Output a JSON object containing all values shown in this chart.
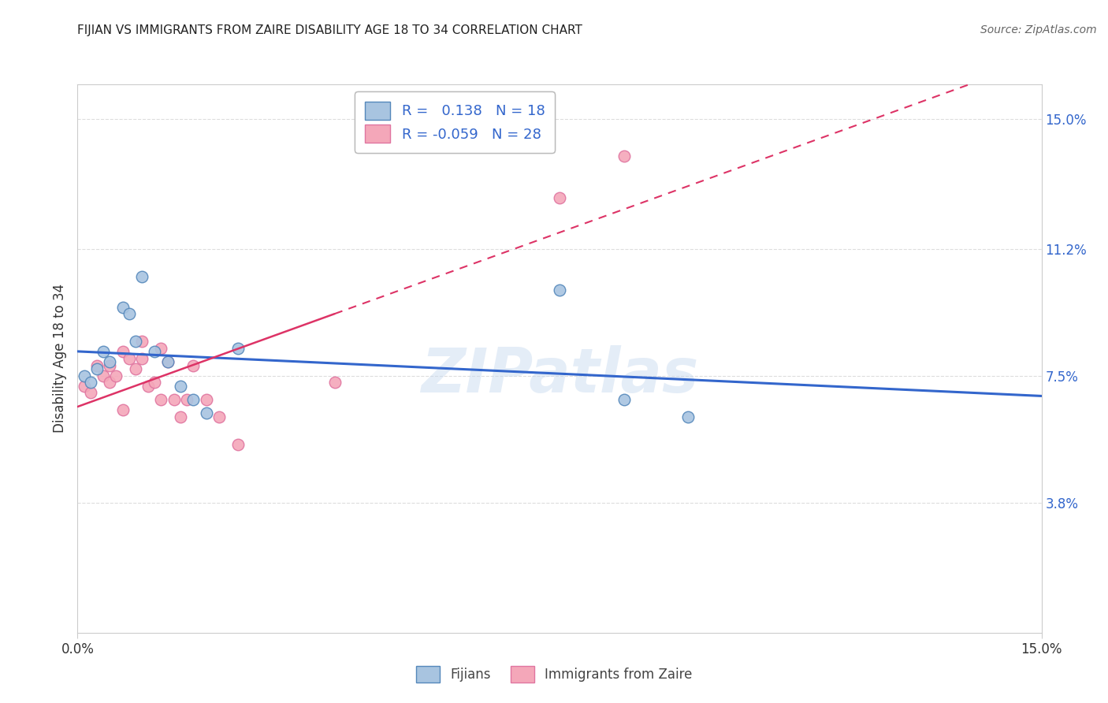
{
  "title": "FIJIAN VS IMMIGRANTS FROM ZAIRE DISABILITY AGE 18 TO 34 CORRELATION CHART",
  "source": "Source: ZipAtlas.com",
  "ylabel": "Disability Age 18 to 34",
  "xlim": [
    0.0,
    0.15
  ],
  "ylim": [
    0.0,
    0.16
  ],
  "ytick_labels": [
    "3.8%",
    "7.5%",
    "11.2%",
    "15.0%"
  ],
  "ytick_values": [
    0.038,
    0.075,
    0.112,
    0.15
  ],
  "fijian_color": "#a8c4e0",
  "zaire_color": "#f4a7b9",
  "fijian_edge": "#5588bb",
  "zaire_edge": "#e075a0",
  "fijian_line_color": "#3366cc",
  "zaire_line_color": "#dd3366",
  "bottom_legend_fijian": "Fijians",
  "bottom_legend_zaire": "Immigrants from Zaire",
  "fijian_R": 0.138,
  "fijian_N": 18,
  "zaire_R": -0.059,
  "zaire_N": 28,
  "fijian_x": [
    0.001,
    0.002,
    0.003,
    0.004,
    0.005,
    0.007,
    0.008,
    0.009,
    0.01,
    0.012,
    0.014,
    0.016,
    0.018,
    0.02,
    0.025,
    0.075,
    0.085,
    0.095
  ],
  "fijian_y": [
    0.075,
    0.073,
    0.077,
    0.082,
    0.079,
    0.095,
    0.093,
    0.085,
    0.104,
    0.082,
    0.079,
    0.072,
    0.068,
    0.064,
    0.083,
    0.1,
    0.068,
    0.063
  ],
  "zaire_x": [
    0.001,
    0.002,
    0.003,
    0.004,
    0.005,
    0.005,
    0.006,
    0.007,
    0.007,
    0.008,
    0.009,
    0.01,
    0.01,
    0.011,
    0.012,
    0.013,
    0.013,
    0.014,
    0.015,
    0.016,
    0.017,
    0.018,
    0.02,
    0.022,
    0.025,
    0.04,
    0.075,
    0.085
  ],
  "zaire_y": [
    0.072,
    0.07,
    0.078,
    0.075,
    0.078,
    0.073,
    0.075,
    0.065,
    0.082,
    0.08,
    0.077,
    0.08,
    0.085,
    0.072,
    0.073,
    0.068,
    0.083,
    0.079,
    0.068,
    0.063,
    0.068,
    0.078,
    0.068,
    0.063,
    0.055,
    0.073,
    0.127,
    0.139
  ],
  "marker_size": 110,
  "background_color": "#ffffff",
  "watermark_text": "ZIPatlas",
  "watermark_color": "#c5d8ee",
  "watermark_alpha": 0.45,
  "grid_color": "#dddddd",
  "spine_color": "#cccccc"
}
